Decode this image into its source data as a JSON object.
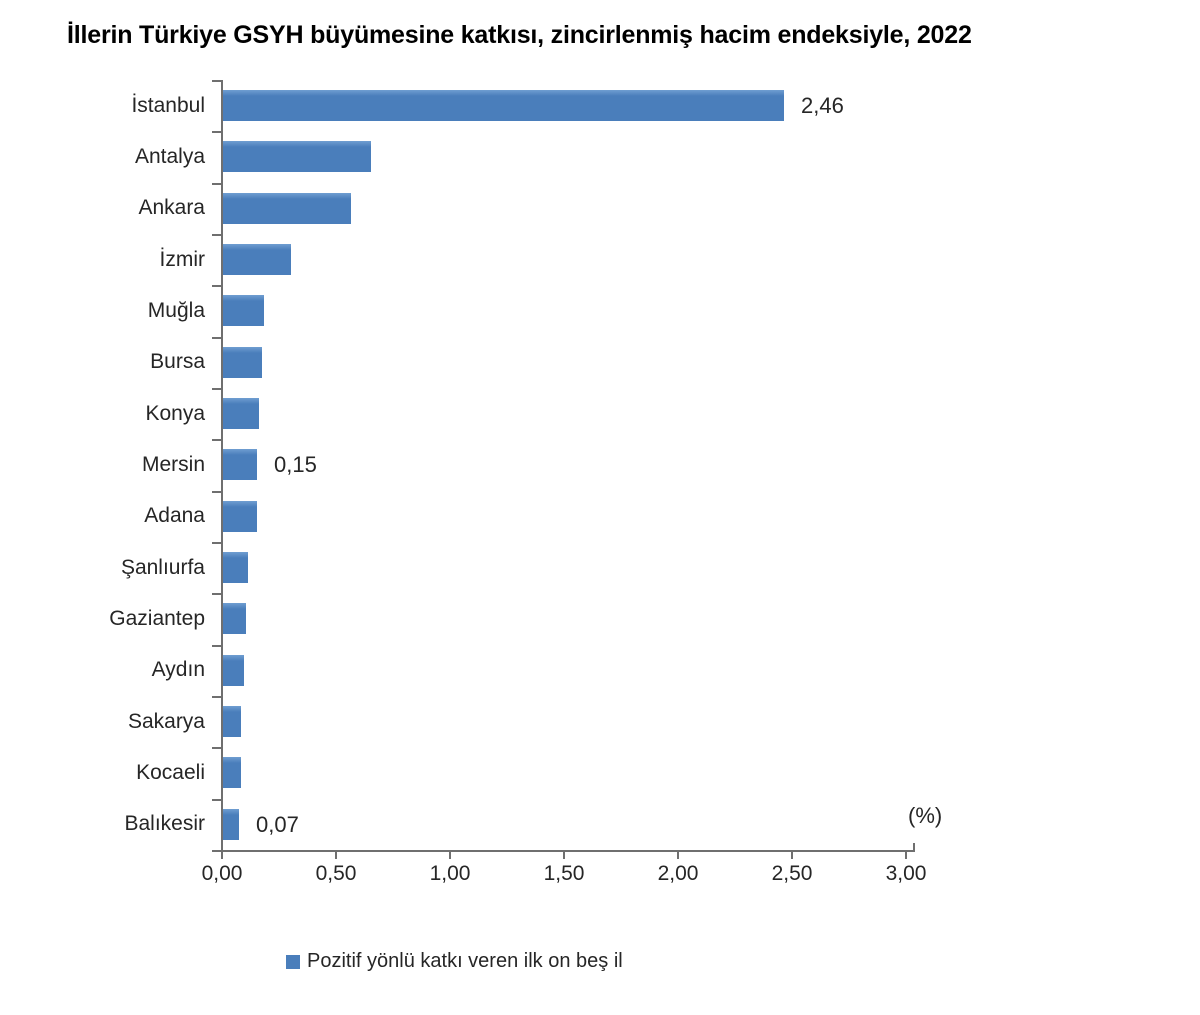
{
  "title": "İllerin Türkiye GSYH büyümesine katkısı, zincirlenmiş hacim endeksiyle, 2022",
  "colors": {
    "bar": "#4a7ebb",
    "bar_highlight": "#6f9ed1",
    "axis": "#6f6f6f",
    "text": "#262626",
    "title": "#000000"
  },
  "chart_data": {
    "type": "bar",
    "orientation": "horizontal",
    "title": "İllerin Türkiye GSYH büyümesine katkısı, zincirlenmiş hacim endeksiyle, 2022",
    "categories": [
      "İstanbul",
      "Antalya",
      "Ankara",
      "İzmir",
      "Muğla",
      "Bursa",
      "Konya",
      "Mersin",
      "Adana",
      "Şanlıurfa",
      "Gaziantep",
      "Aydın",
      "Sakarya",
      "Kocaeli",
      "Balıkesir"
    ],
    "values": [
      2.46,
      0.65,
      0.56,
      0.3,
      0.18,
      0.17,
      0.16,
      0.15,
      0.15,
      0.11,
      0.1,
      0.09,
      0.08,
      0.08,
      0.07
    ],
    "point_labels": [
      "2,46",
      null,
      null,
      null,
      null,
      null,
      null,
      "0,15",
      null,
      null,
      null,
      null,
      null,
      null,
      "0,07"
    ],
    "xlabel": "(%)",
    "xlim": [
      0,
      3
    ],
    "x_ticks": [
      "0,00",
      "0,50",
      "1,00",
      "1,50",
      "2,00",
      "2,50",
      "3,00"
    ],
    "x_tick_values": [
      0,
      0.5,
      1,
      1.5,
      2,
      2.5,
      3
    ],
    "grid": false,
    "sorted": "descending",
    "legend": [
      "Pozitif yönlü katkı veren ilk on beş il"
    ],
    "legend_position": "bottom"
  }
}
